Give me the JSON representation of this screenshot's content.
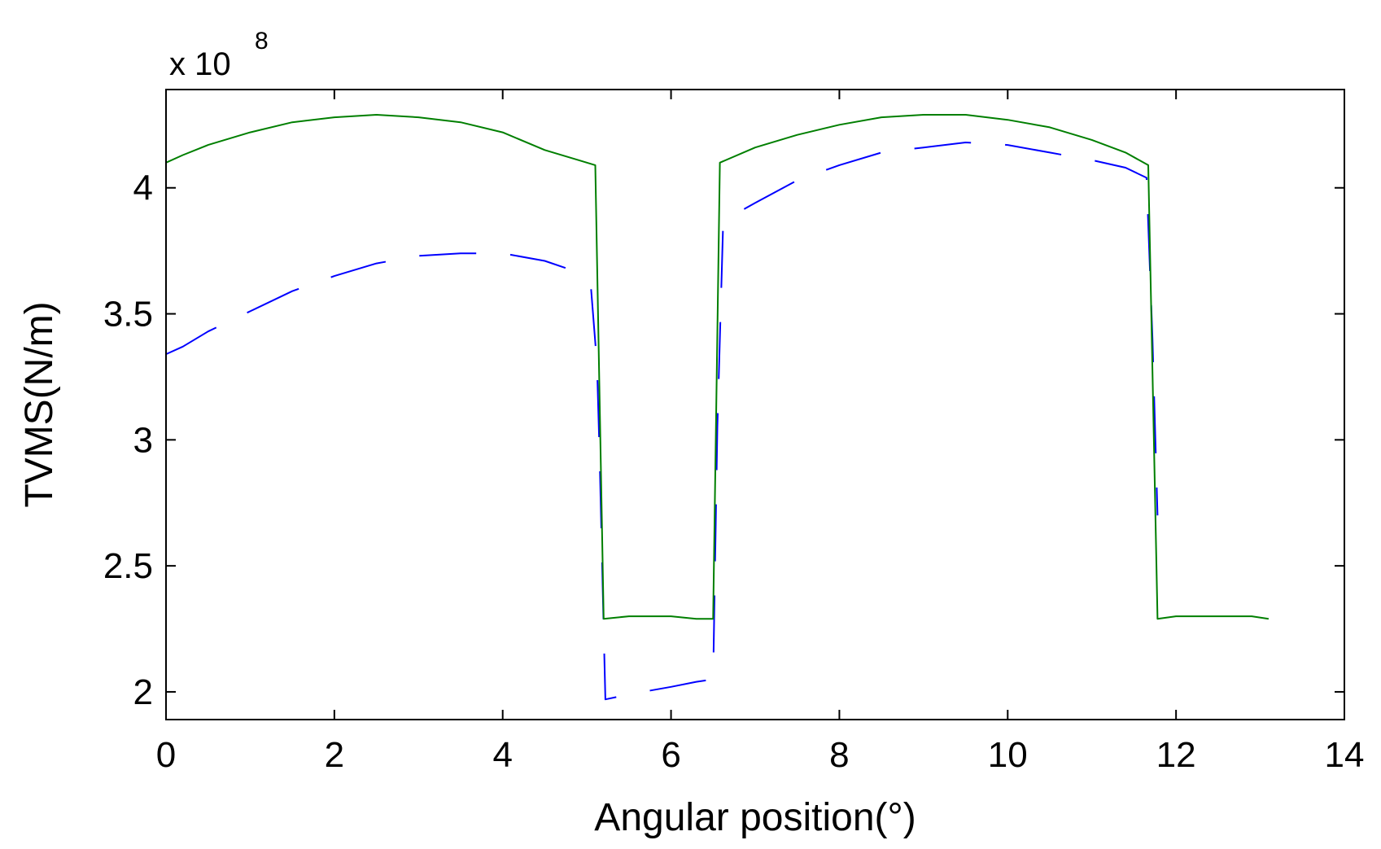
{
  "chart_data": {
    "type": "line",
    "xlabel": "Angular position(°)",
    "ylabel": "TVMS(N/m)",
    "y_multiplier": {
      "base": "x 10",
      "exponent": "8"
    },
    "xlim": [
      0,
      14
    ],
    "ylim": [
      1.89,
      4.39
    ],
    "x_ticks": [
      0,
      2,
      4,
      6,
      8,
      10,
      12,
      14
    ],
    "x_tick_labels": [
      "0",
      "2",
      "4",
      "6",
      "8",
      "10",
      "12",
      "14"
    ],
    "y_ticks": [
      2,
      2.5,
      3,
      3.5,
      4
    ],
    "y_tick_labels": [
      "2",
      "2.5",
      "3",
      "3.5",
      "4"
    ],
    "grid": false,
    "legend": false,
    "series": [
      {
        "color": "#007f00",
        "style": "solid",
        "points": [
          [
            0.0,
            4.1
          ],
          [
            0.2,
            4.13
          ],
          [
            0.5,
            4.17
          ],
          [
            1.0,
            4.22
          ],
          [
            1.5,
            4.26
          ],
          [
            2.0,
            4.28
          ],
          [
            2.5,
            4.29
          ],
          [
            3.0,
            4.28
          ],
          [
            3.5,
            4.26
          ],
          [
            4.0,
            4.22
          ],
          [
            4.5,
            4.15
          ],
          [
            4.9,
            4.11
          ],
          [
            5.1,
            4.09
          ],
          [
            5.2,
            2.29
          ],
          [
            5.5,
            2.3
          ],
          [
            6.0,
            2.3
          ],
          [
            6.3,
            2.29
          ],
          [
            6.5,
            2.29
          ],
          [
            6.58,
            4.1
          ],
          [
            7.0,
            4.16
          ],
          [
            7.5,
            4.21
          ],
          [
            8.0,
            4.25
          ],
          [
            8.5,
            4.28
          ],
          [
            9.0,
            4.29
          ],
          [
            9.5,
            4.29
          ],
          [
            10.0,
            4.27
          ],
          [
            10.5,
            4.24
          ],
          [
            11.0,
            4.19
          ],
          [
            11.4,
            4.14
          ],
          [
            11.67,
            4.09
          ],
          [
            11.78,
            2.29
          ],
          [
            12.0,
            2.3
          ],
          [
            12.5,
            2.3
          ],
          [
            12.9,
            2.3
          ],
          [
            13.1,
            2.29
          ]
        ]
      },
      {
        "color": "#0000ff",
        "style": "dashed",
        "points": [
          [
            0.0,
            3.34
          ],
          [
            0.2,
            3.37
          ],
          [
            0.5,
            3.43
          ],
          [
            1.0,
            3.51
          ],
          [
            1.5,
            3.59
          ],
          [
            2.0,
            3.65
          ],
          [
            2.5,
            3.7
          ],
          [
            3.0,
            3.73
          ],
          [
            3.5,
            3.74
          ],
          [
            4.0,
            3.74
          ],
          [
            4.5,
            3.71
          ],
          [
            4.85,
            3.67
          ],
          [
            5.05,
            3.6
          ],
          [
            5.12,
            3.3
          ],
          [
            5.15,
            2.95
          ],
          [
            5.2,
            2.25
          ],
          [
            5.22,
            1.97
          ],
          [
            5.5,
            1.99
          ],
          [
            6.0,
            2.02
          ],
          [
            6.3,
            2.04
          ],
          [
            6.5,
            2.05
          ],
          [
            6.55,
            3.05
          ],
          [
            6.62,
            3.87
          ],
          [
            7.0,
            3.94
          ],
          [
            7.5,
            4.03
          ],
          [
            8.0,
            4.09
          ],
          [
            8.5,
            4.14
          ],
          [
            9.0,
            4.16
          ],
          [
            9.5,
            4.18
          ],
          [
            10.0,
            4.17
          ],
          [
            10.5,
            4.14
          ],
          [
            11.0,
            4.11
          ],
          [
            11.4,
            4.08
          ],
          [
            11.65,
            4.04
          ],
          [
            11.72,
            3.4
          ],
          [
            11.78,
            2.7
          ]
        ]
      }
    ]
  }
}
